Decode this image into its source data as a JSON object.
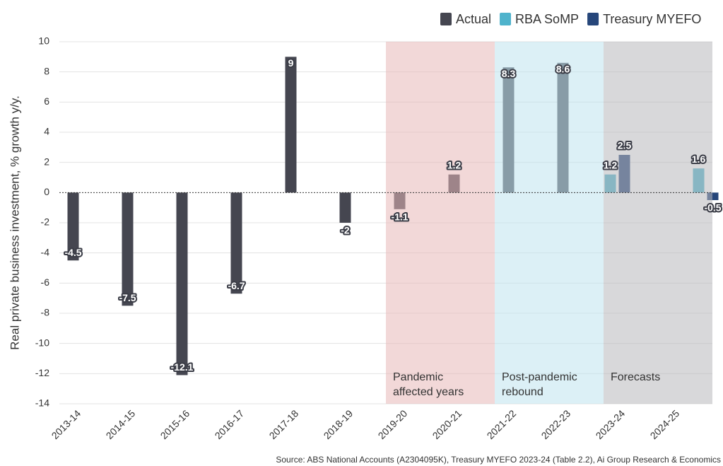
{
  "chart_data": {
    "type": "bar",
    "y_label": "Real private business investment, % growth y/y.",
    "source": "Source: ABS National Accounts (A2304095K), Treasury MYEFO 2023-24 (Table 2.2), Ai Group Research & Economics",
    "categories": [
      "2013-14",
      "2014-15",
      "2015-16",
      "2016-17",
      "2017-18",
      "2018-19",
      "2019-20",
      "2020-21",
      "2021-22",
      "2022-23",
      "2023-24",
      "2024-25"
    ],
    "series": [
      {
        "name": "Actual",
        "color": "#454650",
        "values": [
          -4.5,
          -7.5,
          -12.1,
          -6.7,
          9,
          -2,
          -1.1,
          1.2,
          8.3,
          8.6,
          null,
          null
        ]
      },
      {
        "name": "RBA SoMP",
        "color": "#4fb3cc",
        "values": [
          null,
          null,
          null,
          null,
          null,
          null,
          null,
          null,
          null,
          null,
          1.2,
          1.6
        ]
      },
      {
        "name": "Treasury MYEFO",
        "color": "#26467a",
        "values": [
          null,
          null,
          null,
          null,
          null,
          null,
          null,
          null,
          null,
          null,
          2.5,
          -0.5
        ]
      }
    ],
    "regions": [
      {
        "label": [
          "Pandemic",
          "affected years"
        ],
        "color": "#e8b8b8"
      },
      {
        "label": [
          "Post-pandemic",
          "rebound"
        ],
        "color": "#bfe3ee"
      },
      {
        "label": [
          "Forecasts"
        ],
        "color": "#b8b8bc"
      }
    ],
    "ylim": [
      -14,
      10
    ],
    "yticks": [
      -14,
      -12,
      -10,
      -8,
      -6,
      -4,
      -2,
      0,
      2,
      4,
      6,
      8,
      10
    ],
    "grid": true,
    "legend": "top-right"
  }
}
